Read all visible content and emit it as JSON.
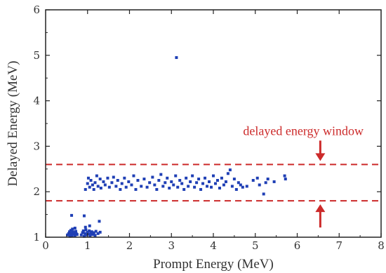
{
  "chart_data": {
    "type": "scatter",
    "xlabel": "Prompt Energy (MeV)",
    "ylabel": "Delayed Energy (MeV)",
    "xlim": [
      0,
      8
    ],
    "ylim": [
      1,
      6
    ],
    "x_ticks": [
      0,
      1,
      2,
      3,
      4,
      5,
      6,
      7,
      8
    ],
    "y_ticks": [
      1,
      2,
      3,
      4,
      5,
      6
    ],
    "grid": false,
    "marker_color": "#1f3fb5",
    "window": {
      "label": "delayed energy window",
      "lower": 1.8,
      "upper": 2.6,
      "line_style": "dashed",
      "color": "#cc2a2a",
      "arrow_x": 6.55
    },
    "points": [
      [
        0.52,
        1.05
      ],
      [
        0.55,
        1.08
      ],
      [
        0.57,
        1.12
      ],
      [
        0.58,
        1.02
      ],
      [
        0.6,
        1.15
      ],
      [
        0.6,
        1.06
      ],
      [
        0.62,
        1.09
      ],
      [
        0.63,
        1.03
      ],
      [
        0.65,
        1.12
      ],
      [
        0.66,
        1.07
      ],
      [
        0.68,
        1.1
      ],
      [
        0.7,
        1.04
      ],
      [
        0.72,
        1.13
      ],
      [
        0.73,
        1.08
      ],
      [
        0.75,
        1.06
      ],
      [
        0.64,
        1.18
      ],
      [
        0.7,
        1.2
      ],
      [
        0.62,
        1.48
      ],
      [
        0.85,
        1.05
      ],
      [
        0.88,
        1.1
      ],
      [
        0.9,
        1.14
      ],
      [
        0.92,
        1.02
      ],
      [
        0.94,
        1.08
      ],
      [
        0.96,
        1.16
      ],
      [
        0.98,
        1.05
      ],
      [
        1.0,
        1.11
      ],
      [
        1.02,
        1.07
      ],
      [
        1.04,
        1.14
      ],
      [
        1.06,
        1.03
      ],
      [
        1.08,
        1.09
      ],
      [
        1.1,
        1.12
      ],
      [
        1.12,
        1.06
      ],
      [
        1.15,
        1.1
      ],
      [
        1.18,
        1.04
      ],
      [
        1.2,
        1.13
      ],
      [
        1.25,
        1.08
      ],
      [
        1.3,
        1.11
      ],
      [
        0.95,
        1.22
      ],
      [
        1.05,
        1.25
      ],
      [
        0.92,
        1.47
      ],
      [
        1.28,
        1.35
      ],
      [
        0.95,
        2.05
      ],
      [
        1.0,
        2.18
      ],
      [
        1.02,
        2.3
      ],
      [
        1.05,
        2.1
      ],
      [
        1.08,
        2.25
      ],
      [
        1.12,
        2.15
      ],
      [
        1.15,
        2.05
      ],
      [
        1.18,
        2.2
      ],
      [
        1.22,
        2.35
      ],
      [
        1.25,
        2.12
      ],
      [
        1.3,
        2.28
      ],
      [
        1.32,
        2.08
      ],
      [
        1.38,
        2.22
      ],
      [
        1.42,
        2.15
      ],
      [
        1.48,
        2.3
      ],
      [
        1.52,
        2.1
      ],
      [
        1.58,
        2.2
      ],
      [
        1.62,
        2.32
      ],
      [
        1.68,
        2.12
      ],
      [
        1.72,
        2.25
      ],
      [
        1.78,
        2.05
      ],
      [
        1.82,
        2.18
      ],
      [
        1.88,
        2.3
      ],
      [
        1.92,
        2.1
      ],
      [
        1.98,
        2.22
      ],
      [
        2.05,
        2.15
      ],
      [
        2.1,
        2.35
      ],
      [
        2.15,
        2.05
      ],
      [
        2.2,
        2.25
      ],
      [
        2.28,
        2.12
      ],
      [
        2.35,
        2.28
      ],
      [
        2.42,
        2.1
      ],
      [
        2.48,
        2.2
      ],
      [
        2.55,
        2.32
      ],
      [
        2.6,
        2.15
      ],
      [
        2.65,
        2.05
      ],
      [
        2.7,
        2.25
      ],
      [
        2.75,
        2.38
      ],
      [
        2.8,
        2.12
      ],
      [
        2.85,
        2.2
      ],
      [
        2.9,
        2.3
      ],
      [
        2.95,
        2.08
      ],
      [
        3.0,
        2.22
      ],
      [
        3.05,
        2.15
      ],
      [
        3.1,
        2.35
      ],
      [
        3.15,
        2.1
      ],
      [
        3.2,
        2.25
      ],
      [
        3.25,
        2.18
      ],
      [
        3.3,
        2.05
      ],
      [
        3.35,
        2.3
      ],
      [
        3.4,
        2.12
      ],
      [
        3.45,
        2.22
      ],
      [
        3.5,
        2.35
      ],
      [
        3.55,
        2.1
      ],
      [
        3.6,
        2.2
      ],
      [
        3.65,
        2.28
      ],
      [
        3.7,
        2.05
      ],
      [
        3.75,
        2.18
      ],
      [
        3.8,
        2.3
      ],
      [
        3.85,
        2.12
      ],
      [
        3.9,
        2.22
      ],
      [
        3.95,
        2.1
      ],
      [
        4.0,
        2.35
      ],
      [
        4.05,
        2.18
      ],
      [
        4.1,
        2.25
      ],
      [
        4.15,
        2.08
      ],
      [
        4.2,
        2.3
      ],
      [
        4.25,
        2.15
      ],
      [
        4.3,
        2.22
      ],
      [
        4.35,
        2.4
      ],
      [
        4.4,
        2.48
      ],
      [
        4.45,
        2.12
      ],
      [
        4.5,
        2.28
      ],
      [
        4.55,
        2.05
      ],
      [
        4.6,
        2.2
      ],
      [
        4.65,
        2.15
      ],
      [
        4.7,
        2.1
      ],
      [
        4.8,
        2.12
      ],
      [
        4.95,
        2.25
      ],
      [
        5.05,
        2.3
      ],
      [
        5.1,
        2.15
      ],
      [
        5.2,
        1.95
      ],
      [
        5.25,
        2.2
      ],
      [
        5.3,
        2.28
      ],
      [
        5.45,
        2.22
      ],
      [
        5.7,
        2.35
      ],
      [
        5.72,
        2.28
      ],
      [
        3.12,
        4.95
      ]
    ]
  }
}
